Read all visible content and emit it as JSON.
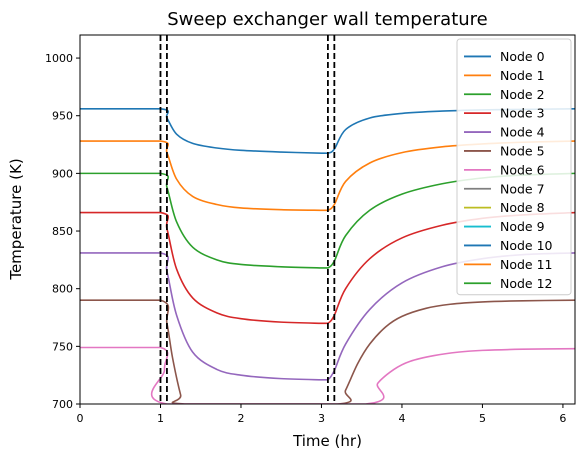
{
  "chart_data": {
    "type": "line",
    "title": "Sweep exchanger wall temperature",
    "xlabel": "Time (hr)",
    "ylabel": "Temperature (K)",
    "xlim": [
      0,
      6.15
    ],
    "ylim": [
      700,
      1020
    ],
    "x_ticks": [
      0,
      1,
      2,
      3,
      4,
      5,
      6
    ],
    "x_tick_labels": [
      "0",
      "1",
      "2",
      "3",
      "4",
      "5",
      "6"
    ],
    "y_ticks": [
      700,
      750,
      800,
      850,
      900,
      950,
      1000
    ],
    "y_tick_labels": [
      "700",
      "750",
      "800",
      "850",
      "900",
      "950",
      "1000"
    ],
    "grid": false,
    "legend_position": "top-right",
    "vertical_lines": [
      1.0,
      1.08,
      3.08,
      3.16
    ],
    "vertical_line_style": "dashed-black",
    "series": [
      {
        "name": "Node 0",
        "color": "#1f77b4",
        "x": [
          0,
          1.0,
          1.08,
          1.2,
          1.4,
          1.7,
          2.0,
          2.5,
          3.0,
          3.08,
          3.16,
          3.3,
          3.6,
          4.0,
          4.5,
          5.0,
          5.5,
          6.15
        ],
        "y": [
          956,
          956,
          948,
          934,
          926,
          922,
          920,
          918.5,
          917.5,
          917.5,
          921,
          938,
          948,
          952,
          954,
          955,
          955.5,
          956
        ]
      },
      {
        "name": "Node 1",
        "color": "#ff7f0e",
        "x": [
          0,
          1.0,
          1.08,
          1.2,
          1.4,
          1.7,
          2.0,
          2.5,
          3.0,
          3.08,
          3.16,
          3.3,
          3.6,
          4.0,
          4.5,
          5.0,
          5.5,
          6.15
        ],
        "y": [
          928,
          928,
          918,
          895,
          880,
          873,
          870,
          868.5,
          868,
          868,
          873,
          893,
          909,
          918,
          923,
          925.5,
          927,
          928
        ]
      },
      {
        "name": "Node 2",
        "color": "#2ca02c",
        "x": [
          0,
          1.0,
          1.08,
          1.2,
          1.4,
          1.7,
          2.0,
          2.5,
          3.0,
          3.08,
          3.16,
          3.3,
          3.6,
          4.0,
          4.5,
          5.0,
          5.5,
          6.15
        ],
        "y": [
          900,
          900,
          888,
          858,
          836,
          825,
          821,
          819,
          818,
          818,
          824,
          846,
          868,
          882,
          891,
          896,
          898.5,
          900
        ]
      },
      {
        "name": "Node 3",
        "color": "#d62728",
        "x": [
          0,
          1.0,
          1.08,
          1.2,
          1.4,
          1.7,
          2.0,
          2.5,
          3.0,
          3.08,
          3.16,
          3.3,
          3.6,
          4.0,
          4.5,
          5.0,
          5.5,
          6.15
        ],
        "y": [
          866,
          866,
          852,
          817,
          792,
          779,
          774,
          771,
          770,
          770,
          777,
          800,
          826,
          844,
          855,
          861,
          864,
          866
        ]
      },
      {
        "name": "Node 4",
        "color": "#9467bd",
        "x": [
          0,
          1.0,
          1.08,
          1.2,
          1.4,
          1.7,
          2.0,
          2.5,
          3.0,
          3.08,
          3.16,
          3.3,
          3.6,
          4.0,
          4.5,
          5.0,
          5.5,
          6.15
        ],
        "y": [
          831,
          831,
          815,
          777,
          745,
          730,
          725,
          722,
          721,
          721,
          729,
          752,
          782,
          805,
          819,
          826,
          829.5,
          831
        ]
      },
      {
        "name": "Node 5",
        "color": "#8c564b",
        "x": [
          0,
          1.0,
          1.08,
          1.15,
          1.25,
          1.3,
          3.2,
          3.3,
          3.45,
          3.6,
          3.8,
          4.0,
          4.3,
          4.6,
          5.0,
          5.5,
          6.15
        ],
        "y": [
          790,
          790,
          770,
          740,
          708,
          700,
          700,
          712,
          735,
          752,
          767,
          776,
          783,
          786.5,
          788.5,
          789.5,
          790
        ]
      },
      {
        "name": "Node 6",
        "color": "#e377c2",
        "x": [
          0,
          1.0,
          1.05,
          1.08,
          3.55,
          3.7,
          3.9,
          4.1,
          4.4,
          4.7,
          5.0,
          5.5,
          6.15
        ],
        "y": [
          749,
          749,
          730,
          700,
          700,
          718,
          730,
          737,
          742,
          745,
          746.5,
          747.5,
          748
        ]
      },
      {
        "name": "Node 7",
        "color": "#7f7f7f",
        "x": [],
        "y": []
      },
      {
        "name": "Node 8",
        "color": "#bcbd22",
        "x": [],
        "y": []
      },
      {
        "name": "Node 9",
        "color": "#17becf",
        "x": [],
        "y": []
      },
      {
        "name": "Node 10",
        "color": "#1f77b4",
        "x": [],
        "y": []
      },
      {
        "name": "Node 11",
        "color": "#ff7f0e",
        "x": [],
        "y": []
      },
      {
        "name": "Node 12",
        "color": "#2ca02c",
        "x": [],
        "y": []
      }
    ]
  }
}
